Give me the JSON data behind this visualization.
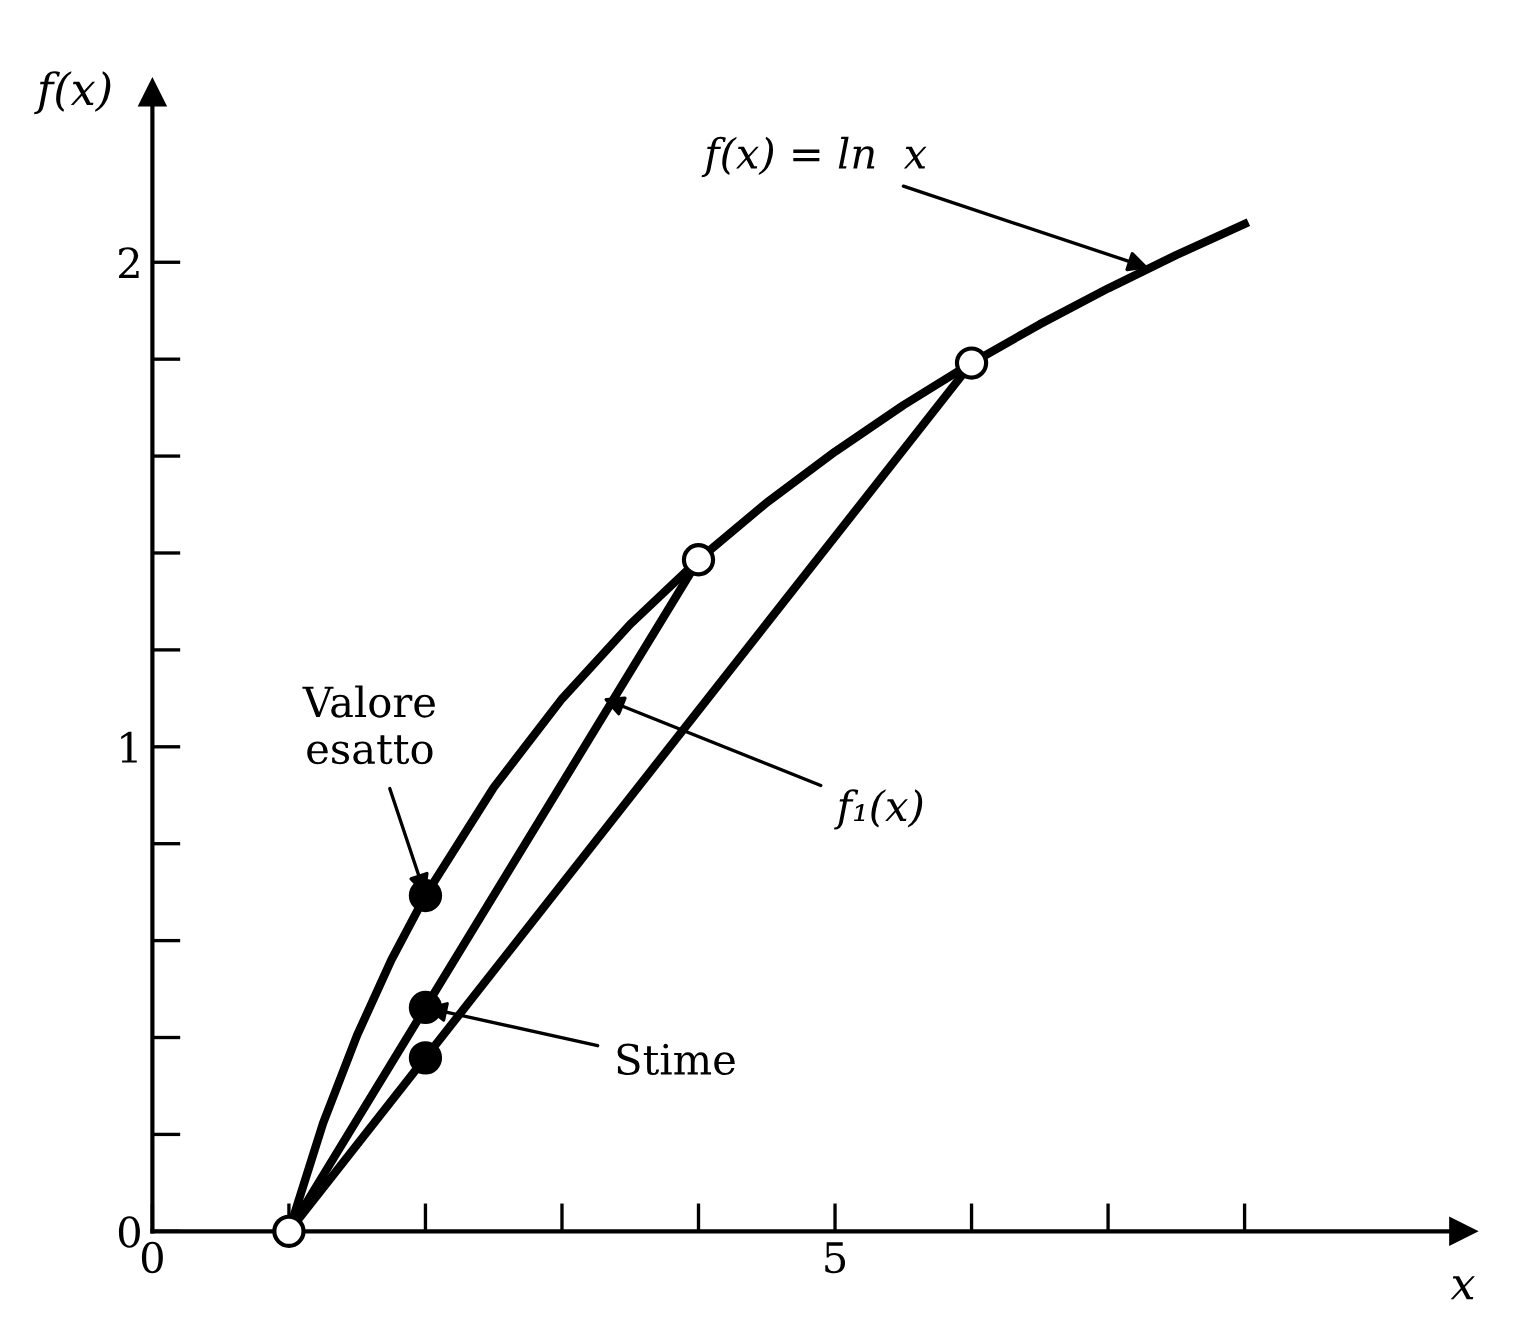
{
  "chart_data": {
    "type": "line",
    "xlabel": "x",
    "ylabel": "f(x)",
    "xlim": [
      0,
      9.6
    ],
    "ylim": [
      0,
      2.35
    ],
    "xticks": [
      0,
      {
        "value": 1,
        "label": null
      },
      {
        "value": 2,
        "label": null
      },
      {
        "value": 3,
        "label": null
      },
      {
        "value": 4,
        "label": null
      },
      5,
      {
        "value": 6,
        "label": null
      },
      {
        "value": 7,
        "label": null
      },
      {
        "value": 8,
        "label": null
      }
    ],
    "yticks": [
      0,
      {
        "value": 0.2,
        "label": null
      },
      {
        "value": 0.4,
        "label": null
      },
      {
        "value": 0.6,
        "label": null
      },
      {
        "value": 0.8,
        "label": null
      },
      1,
      {
        "value": 1.2,
        "label": null
      },
      {
        "value": 1.4,
        "label": null
      },
      {
        "value": 1.6,
        "label": null
      },
      {
        "value": 1.8,
        "label": null
      },
      2
    ],
    "grid": false,
    "series": [
      {
        "color": "#000000",
        "marker": "none",
        "x": [
          1,
          1.25,
          1.5,
          1.75,
          2,
          2.5,
          3,
          3.5,
          4,
          4.5,
          5,
          5.5,
          6,
          6.5,
          7,
          7.5,
          8
        ],
        "values": [
          0,
          0.223,
          0.405,
          0.56,
          0.693,
          0.916,
          1.099,
          1.253,
          1.386,
          1.504,
          1.609,
          1.705,
          1.792,
          1.872,
          1.946,
          2.015,
          2.079
        ]
      },
      {
        "color": "#000000",
        "marker": "none",
        "x": [
          1,
          4
        ],
        "values": [
          0,
          1.386
        ]
      },
      {
        "color": "#000000",
        "marker": "none",
        "x": [
          1,
          6
        ],
        "values": [
          0,
          1.792
        ]
      },
      {
        "type": "scatter",
        "color": "#000000",
        "marker": "circle",
        "x": [
          2,
          2,
          2
        ],
        "values": [
          0.693,
          0.462,
          0.358
        ]
      },
      {
        "type": "scatter",
        "color": "#000000",
        "colors": [
          "#ffffff",
          "#ffffff",
          "#ffffff"
        ],
        "marker": "circle",
        "x": [
          1,
          4,
          6
        ],
        "values": [
          0,
          1.386,
          1.792
        ]
      }
    ],
    "annotations": [
      {
        "text": "f(x) = ln  x",
        "x": 7.3,
        "y": 1.988
      },
      {
        "text": "f₁(x)",
        "x": 3.3,
        "y": 1.1
      },
      {
        "text": "Valore\nesatto",
        "x": 2,
        "y": 0.693
      },
      {
        "text": "Stime",
        "x": 2,
        "y": 0.462
      }
    ]
  }
}
